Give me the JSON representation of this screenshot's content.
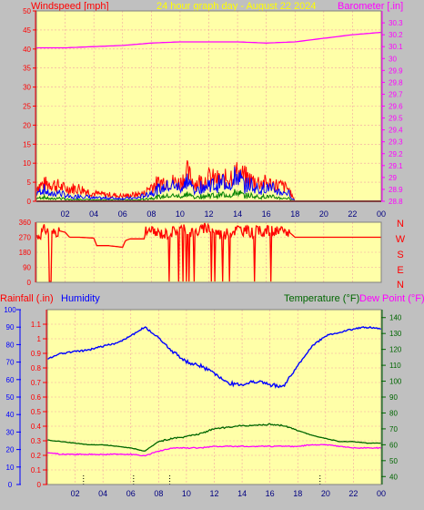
{
  "header": {
    "wind_label": "Windspeed [mph]",
    "title": "24 hour graph day - August 22 2024",
    "baro_label": "Barometer [.in]"
  },
  "lower_header": {
    "rain_label": "Rainfall (.in)",
    "humidity_label": "Humidity",
    "temp_label": "Temperature (°F)",
    "dew_label": "Dew Point (°F)"
  },
  "colors": {
    "background": "#c0c0c0",
    "plot_bg": "#ffffa8",
    "grid": "#f2a2a2",
    "wind": "#ff0000",
    "gust": "#0000ff",
    "wind_low": "#008000",
    "barometer": "#ff00ff",
    "direction": "#ff0000",
    "humidity": "#0000ff",
    "temperature": "#006600",
    "dewpoint": "#ff00ff",
    "rain_axis": "#0000ff"
  },
  "chart_data": [
    {
      "type": "line",
      "id": "wind_barometer",
      "x_unit": "hour",
      "x_ticks": [
        "02",
        "04",
        "06",
        "08",
        "10",
        "12",
        "14",
        "16",
        "18",
        "20",
        "22",
        "00"
      ],
      "y_left": {
        "label": "Windspeed [mph]",
        "range": [
          0,
          50
        ],
        "ticks": [
          "0",
          "5",
          "10",
          "15",
          "20",
          "25",
          "30",
          "35",
          "40",
          "45",
          "50"
        ]
      },
      "y_right": {
        "label": "Barometer [.in]",
        "range": [
          28.8,
          30.4
        ],
        "ticks": [
          "28.8",
          "28.9",
          "29",
          "29.1",
          "29.2",
          "29.3",
          "29.4",
          "29.5",
          "29.6",
          "29.7",
          "29.8",
          "29.9",
          "30",
          "30.1",
          "30.2",
          "30.3"
        ]
      },
      "grid": true,
      "series": [
        {
          "name": "Barometer",
          "axis": "right",
          "x": [
            0,
            2,
            4,
            6,
            8,
            10,
            12,
            14,
            16,
            18,
            20,
            22,
            24
          ],
          "y": [
            30.09,
            30.09,
            30.1,
            30.11,
            30.13,
            30.14,
            30.14,
            30.14,
            30.13,
            30.14,
            30.17,
            30.2,
            30.22
          ]
        },
        {
          "name": "Windspeed",
          "axis": "left",
          "x": [
            0,
            0.5,
            1,
            1.5,
            2,
            2.5,
            3,
            4,
            5,
            6,
            7,
            7.5,
            8,
            8.5,
            9,
            9.5,
            10,
            10.5,
            11,
            11.5,
            12,
            12.5,
            13,
            13.5,
            14,
            14.5,
            15,
            15.5,
            16,
            16.5,
            17,
            17.5,
            18,
            20,
            22,
            24
          ],
          "y": [
            3,
            4,
            2,
            3,
            2,
            1,
            2,
            1,
            1,
            1,
            1,
            2,
            3,
            4,
            5,
            6,
            5,
            7,
            4,
            5,
            6,
            5,
            7,
            6,
            9,
            5,
            6,
            4,
            5,
            4,
            3,
            3,
            0,
            0,
            0,
            0
          ]
        },
        {
          "name": "Gust max",
          "axis": "left",
          "x": [
            0,
            1,
            2,
            3,
            4,
            6,
            7.5,
            8,
            9,
            10,
            10.5,
            11,
            12,
            13,
            13.5,
            14,
            15,
            16,
            17,
            17.5,
            18,
            20,
            24
          ],
          "y": [
            6,
            7,
            5,
            5,
            3,
            2,
            3,
            6,
            8,
            7,
            11,
            7,
            9,
            8,
            10,
            11,
            8,
            7,
            6,
            5,
            0,
            0,
            0
          ]
        }
      ]
    },
    {
      "type": "line",
      "id": "wind_direction",
      "y_ticks": [
        "0",
        "90",
        "180",
        "270",
        "360"
      ],
      "y_range": [
        0,
        360
      ],
      "compass_labels": [
        "N",
        "W",
        "S",
        "E",
        "N"
      ],
      "series": [
        {
          "name": "Wind direction",
          "x": [
            0,
            0.4,
            0.6,
            1,
            1.5,
            2,
            2.3,
            3,
            4,
            4.2,
            5,
            6,
            6.2,
            6.5,
            7.5,
            7.6,
            8,
            9,
            10,
            11,
            12,
            13,
            14,
            15,
            16,
            17,
            17.6,
            18,
            20,
            22,
            24
          ],
          "y": [
            270,
            300,
            320,
            290,
            310,
            300,
            270,
            270,
            265,
            220,
            220,
            210,
            250,
            260,
            260,
            300,
            300,
            290,
            320,
            300,
            330,
            280,
            320,
            300,
            310,
            300,
            300,
            270,
            270,
            270,
            270
          ]
        }
      ]
    },
    {
      "type": "line",
      "id": "humidity_temperature",
      "x_ticks": [
        "02",
        "04",
        "06",
        "08",
        "10",
        "12",
        "14",
        "16",
        "18",
        "20",
        "22",
        "00"
      ],
      "y_left_humidity": {
        "label": "Humidity",
        "range": [
          0,
          100
        ],
        "ticks": [
          "0",
          "10",
          "20",
          "30",
          "40",
          "50",
          "60",
          "70",
          "80",
          "90",
          "100"
        ]
      },
      "y_left_rain": {
        "label": "Rainfall (.in)",
        "range": [
          0,
          1.2
        ],
        "ticks": [
          "0",
          "0.1",
          "0.2",
          "0.3",
          "0.4",
          "0.5",
          "0.6",
          "0.7",
          "0.8",
          "0.9",
          "1",
          "1.1"
        ]
      },
      "y_right": {
        "label": "Temperature (°F)",
        "range": [
          35,
          145
        ],
        "ticks": [
          "40",
          "50",
          "60",
          "70",
          "80",
          "90",
          "100",
          "110",
          "120",
          "130",
          "140"
        ]
      },
      "series": [
        {
          "name": "Humidity",
          "axis": "left",
          "x": [
            0,
            1,
            2,
            3,
            4,
            5,
            6,
            7,
            8,
            9,
            10,
            11,
            12,
            13,
            14,
            15,
            16,
            17,
            18,
            19,
            20,
            21,
            22,
            23,
            24
          ],
          "y": [
            72,
            75,
            76,
            77,
            79,
            81,
            85,
            90,
            84,
            76,
            70,
            68,
            64,
            58,
            57,
            59,
            57,
            56,
            68,
            79,
            85,
            87,
            89,
            90,
            89
          ]
        },
        {
          "name": "Temperature",
          "axis": "right",
          "x": [
            0,
            1,
            2,
            3,
            4,
            5,
            6,
            7,
            8,
            9,
            10,
            11,
            12,
            13,
            14,
            15,
            16,
            17,
            18,
            19,
            20,
            21,
            22,
            23,
            24
          ],
          "y": [
            63,
            62,
            61,
            60,
            60,
            59,
            58,
            56,
            62,
            64,
            65,
            67,
            70,
            71,
            72,
            72,
            73,
            72,
            69,
            66,
            64,
            62,
            62,
            61,
            61
          ]
        },
        {
          "name": "Dew Point",
          "axis": "right",
          "x": [
            0,
            1,
            2,
            3,
            4,
            5,
            6,
            7,
            8,
            9,
            10,
            11,
            12,
            13,
            14,
            15,
            16,
            17,
            18,
            19,
            20,
            21,
            22,
            23,
            24
          ],
          "y": [
            55,
            54,
            54,
            54,
            54,
            54,
            54,
            53,
            56,
            58,
            58,
            58,
            59,
            59,
            59,
            59,
            59,
            59,
            59,
            60,
            60,
            59,
            58,
            58,
            58
          ]
        }
      ]
    }
  ]
}
